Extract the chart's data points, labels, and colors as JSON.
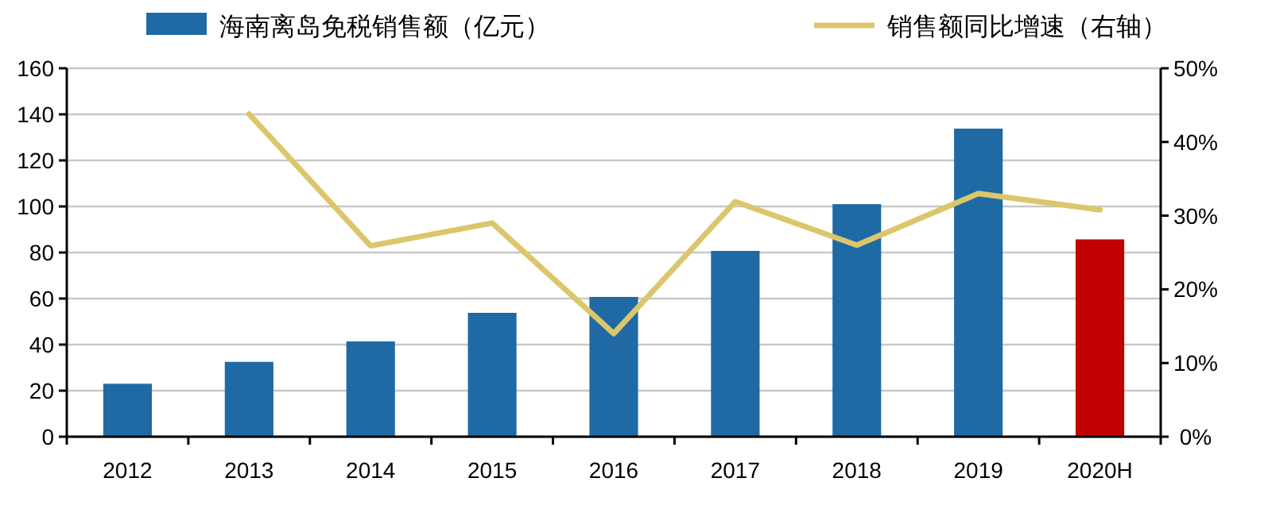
{
  "chart_data": {
    "type": "bar",
    "categories": [
      "2012",
      "2013",
      "2014",
      "2015",
      "2016",
      "2017",
      "2018",
      "2019",
      "2020H"
    ],
    "series": [
      {
        "name": "海南离岛免税销售额（亿元）",
        "color": "#1f6aa5",
        "colors": [
          "#1f6aa5",
          "#1f6aa5",
          "#1f6aa5",
          "#1f6aa5",
          "#1f6aa5",
          "#1f6aa5",
          "#1f6aa5",
          "#1f6aa5",
          "#c00000"
        ],
        "values": [
          23,
          32.5,
          41.4,
          53.8,
          60.7,
          80.7,
          101,
          133.8,
          85.7
        ]
      },
      {
        "name": "销售额同比增速（右轴）",
        "type": "line",
        "axis": "y2",
        "color": "#dcc66b",
        "values": [
          null,
          43.8,
          25.9,
          29,
          14,
          31.9,
          26,
          33,
          30.8
        ]
      }
    ],
    "ylim": [
      0,
      160
    ],
    "yticks": [
      0,
      20,
      40,
      60,
      80,
      100,
      120,
      140,
      160
    ],
    "y2lim": [
      0,
      50
    ],
    "y2ticks": [
      {
        "value": 0,
        "label": "0%"
      },
      {
        "value": 10,
        "label": "10%"
      },
      {
        "value": 20,
        "label": "20%"
      },
      {
        "value": 30,
        "label": "30%"
      },
      {
        "value": 40,
        "label": "40%"
      },
      {
        "value": 50,
        "label": "50%"
      }
    ],
    "grid": "y",
    "legend": "top"
  }
}
